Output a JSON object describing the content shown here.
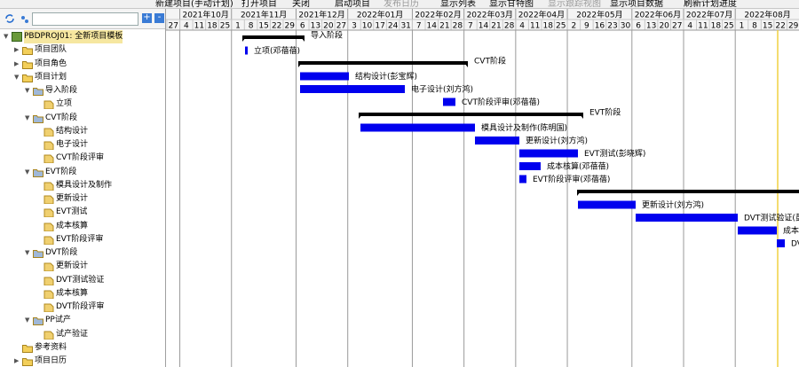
{
  "toolbar": {
    "tools": [
      "新建项目(手动计划)",
      "打开项目",
      "关闭",
      "启动项目",
      "发布日历",
      "显示列表",
      "显示甘特图",
      "显示跟踪视图",
      "显示项目数据",
      "刷新计划进度"
    ]
  },
  "tree": {
    "nodes": [
      {
        "label": "PBDPROJ01: 全新项目模板",
        "children": [
          {
            "label": "项目团队"
          },
          {
            "label": "项目角色"
          },
          {
            "label": "项目计划",
            "children": [
              {
                "label": "导入阶段",
                "children": [
                  {
                    "label": "立项"
                  }
                ]
              },
              {
                "label": "CVT阶段",
                "children": [
                  {
                    "label": "结构设计"
                  },
                  {
                    "label": "电子设计"
                  },
                  {
                    "label": "CVT阶段评审"
                  }
                ]
              },
              {
                "label": "EVT阶段",
                "children": [
                  {
                    "label": "模具设计及制作"
                  },
                  {
                    "label": "更新设计"
                  },
                  {
                    "label": "EVT测试"
                  },
                  {
                    "label": "成本核算"
                  },
                  {
                    "label": "EVT阶段评审"
                  }
                ]
              },
              {
                "label": "DVT阶段",
                "children": [
                  {
                    "label": "更新设计"
                  },
                  {
                    "label": "DVT测试验证"
                  },
                  {
                    "label": "成本核算"
                  },
                  {
                    "label": "DVT阶段评审"
                  }
                ]
              },
              {
                "label": "PP试产",
                "children": [
                  {
                    "label": "试产验证"
                  }
                ]
              }
            ]
          },
          {
            "label": "参考资料"
          },
          {
            "label": "项目日历"
          }
        ]
      }
    ]
  },
  "gantt": {
    "months": [
      {
        "label": null,
        "days": [
          27
        ]
      },
      {
        "label": "2021年10月",
        "days": [
          4,
          11,
          18,
          25
        ]
      },
      {
        "label": "2021年11月",
        "days": [
          1,
          8,
          15,
          22,
          29
        ]
      },
      {
        "label": "2021年12月",
        "days": [
          6,
          13,
          20,
          27
        ]
      },
      {
        "label": "2022年01月",
        "days": [
          3,
          10,
          17,
          24,
          31
        ]
      },
      {
        "label": "2022年02月",
        "days": [
          7,
          14,
          21,
          28
        ]
      },
      {
        "label": "2022年03月",
        "days": [
          7,
          14,
          21,
          28
        ]
      },
      {
        "label": "2022年04月",
        "days": [
          4,
          11,
          18,
          25
        ]
      },
      {
        "label": "2022年05月",
        "days": [
          2,
          9,
          16,
          23,
          30
        ]
      },
      {
        "label": "2022年06月",
        "days": [
          6,
          13,
          20,
          27
        ]
      },
      {
        "label": "2022年07月",
        "days": [
          4,
          11,
          18,
          25
        ]
      },
      {
        "label": "2022年08月",
        "days": [
          1,
          8,
          15,
          22,
          29
        ]
      }
    ],
    "items": [
      {
        "label": "导入阶段"
      },
      {
        "label": "立项(邓蓓蓓)"
      },
      {
        "label": "CVT阶段"
      },
      {
        "label": "结构设计(彭宝辉)"
      },
      {
        "label": "电子设计(刘方鸿)"
      },
      {
        "label": "CVT阶段评审(邓蓓蓓)"
      },
      {
        "label": "EVT阶段"
      },
      {
        "label": "模具设计及制作(陈明国)"
      },
      {
        "label": "更新设计(刘方鸿)"
      },
      {
        "label": "EVT测试(彭晓辉)"
      },
      {
        "label": "成本核算(邓蓓蓓)"
      },
      {
        "label": "EVT阶段评审(邓蓓蓓)"
      },
      {
        "label": null
      },
      {
        "label": "更新设计(刘方鸿)"
      },
      {
        "label": "DVT测试验证(彭"
      },
      {
        "label": "成本核"
      },
      {
        "label": "DV"
      }
    ]
  }
}
